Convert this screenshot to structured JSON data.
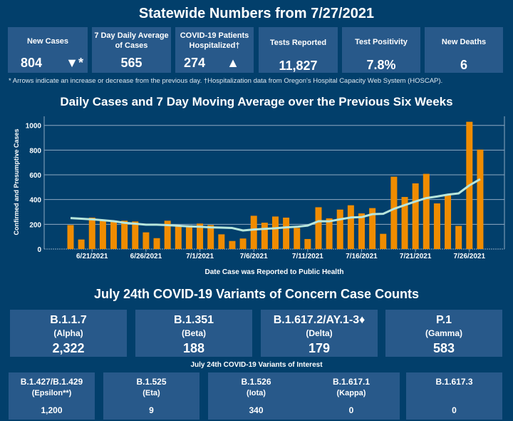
{
  "header": {
    "title": "Statewide Numbers from 7/27/2021"
  },
  "summary_cards": [
    {
      "label": "New Cases",
      "value": "804",
      "indicator": "▼*"
    },
    {
      "label": "7 Day Daily Average of Cases",
      "value": "565"
    },
    {
      "label": "COVID-19 Patients Hospitalized†",
      "value": "274",
      "indicator": "▲"
    },
    {
      "label": "Tests Reported",
      "value": "11,827"
    },
    {
      "label": "Test Positivity",
      "value": "7.8%"
    },
    {
      "label": "New Deaths",
      "value": "6"
    }
  ],
  "footnote": "* Arrows indicate an increase or decrease from the previous day. †Hospitalization data from Oregon's Hospital Capacity Web System (HOSCAP).",
  "colors": {
    "background": "#023f6b",
    "card": "#28598a",
    "bar": "#f08c00",
    "line": "#b8e6dc"
  },
  "chart_data": {
    "type": "bar",
    "title": "Daily Cases and 7 Day Moving Average over the Previous Six Weeks",
    "xlabel": "Date Case was Reported to Public Health",
    "ylabel": "Confirmed and Presumptive Cases",
    "ylim": [
      0,
      1080
    ],
    "yticks": [
      "0",
      "200",
      "400",
      "600",
      "800",
      "1000"
    ],
    "xtick_labels": [
      "6/21/2021",
      "6/26/2021",
      "7/1/2021",
      "7/6/2021",
      "7/11/2021",
      "7/16/2021",
      "7/21/2021",
      "7/26/2021"
    ],
    "grid": true,
    "categories": [
      "6/19",
      "6/20",
      "6/21",
      "6/22",
      "6/23",
      "6/24",
      "6/25",
      "6/26",
      "6/27",
      "6/28",
      "6/29",
      "6/30",
      "7/1",
      "7/2",
      "7/3",
      "7/4",
      "7/5",
      "7/6",
      "7/7",
      "7/8",
      "7/9",
      "7/10",
      "7/11",
      "7/12",
      "7/13",
      "7/14",
      "7/15",
      "7/16",
      "7/17",
      "7/18",
      "7/19",
      "7/20",
      "7/21",
      "7/22",
      "7/23",
      "7/24",
      "7/25",
      "7/26",
      "7/27"
    ],
    "series": [
      {
        "type": "bar",
        "values": [
          194,
          77,
          254,
          229,
          231,
          229,
          223,
          135,
          88,
          229,
          192,
          192,
          206,
          194,
          119,
          65,
          85,
          269,
          213,
          263,
          254,
          171,
          81,
          338,
          248,
          319,
          354,
          288,
          331,
          123,
          585,
          421,
          531,
          608,
          369,
          435,
          187,
          1029,
          804
        ]
      },
      {
        "type": "line",
        "values": [
          250,
          245,
          240,
          233,
          225,
          212,
          205,
          197,
          197,
          193,
          188,
          183,
          180,
          175,
          173,
          170,
          150,
          158,
          163,
          168,
          175,
          180,
          190,
          225,
          224,
          240,
          255,
          258,
          282,
          285,
          325,
          355,
          385,
          412,
          425,
          440,
          450,
          515,
          565
        ]
      }
    ]
  },
  "variants": {
    "title": "July 24th  COVID-19 Variants of Concern Case Counts",
    "concern": [
      {
        "name": "B.1.1.7",
        "label": "(Alpha)",
        "count": "2,322"
      },
      {
        "name": "B.1.351",
        "label": "(Beta)",
        "count": "188"
      },
      {
        "name": "B.1.617.2/AY.1-3♦",
        "label": "(Delta)",
        "count": "179"
      },
      {
        "name": "P.1",
        "label": "(Gamma)",
        "count": "583"
      }
    ],
    "interest_title": "July 24th COVID-19 Variants of Interest",
    "interest": [
      {
        "name": "B.1.427/B.1.429",
        "label": "(Epsilon**)",
        "count": "1,200"
      },
      {
        "name": "B.1.525",
        "label": "(Eta)",
        "count": "9"
      },
      {
        "name": "B.1.526",
        "label": "(Iota)",
        "count": "340"
      },
      {
        "name": "B.1.617.1",
        "label": "(Kappa)",
        "count": "0"
      },
      {
        "name": "B.1.617.3",
        "label": "",
        "count": "0"
      }
    ]
  }
}
